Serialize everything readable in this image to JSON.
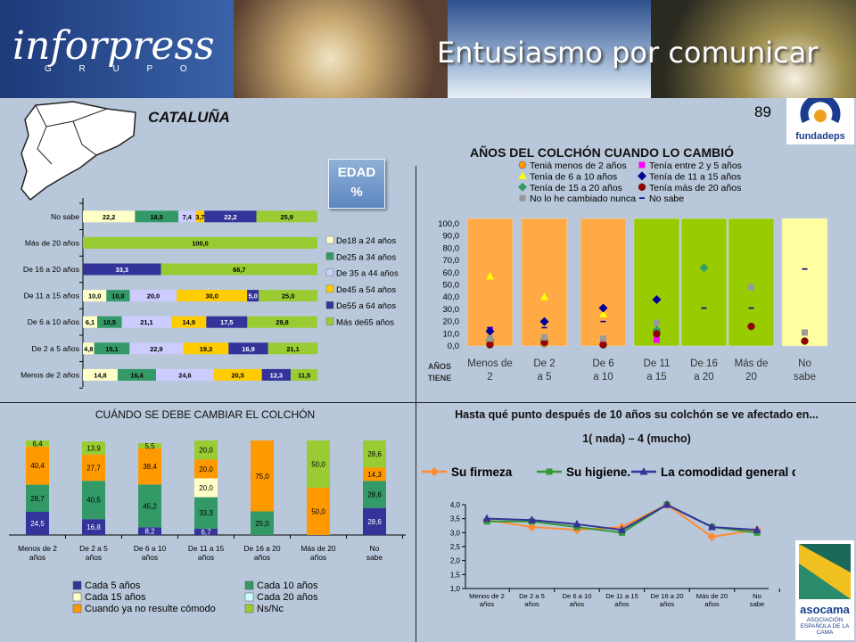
{
  "header": {
    "brand": "inforpress",
    "brand_sub": "G R U P O",
    "tagline": "Entusiasmo por comunicar",
    "page_number": "89",
    "region": "CATALUÑA",
    "logo_fundadeps": "fundadeps",
    "logo_asocama": "asocama",
    "logo_asocama_sub": "ASOCIACIÓN ESPAÑOLA DE LA CAMA"
  },
  "edad_box": {
    "line1": "EDAD",
    "line2": "%"
  },
  "titles": {
    "change_years": "AÑOS DEL COLCHÓN CUANDO LO CAMBIÓ",
    "when_change": "CUÁNDO  SE DEBE CAMBIAR  EL COLCHÓN",
    "affected_line1": "Hasta qué punto después de 10 años su colchón se ve afectado en...",
    "affected_line2": "1( nada) – 4 (mucho)"
  },
  "chart_data": [
    {
      "id": "edad",
      "type": "bar",
      "orientation": "horizontal",
      "stacked": true,
      "categories": [
        "No sabe",
        "Más de 20 años",
        "De 16 a 20 años",
        "De 11 a 15 años",
        "De 6 a 10 años",
        "De 2 a 5 años",
        "Menos de 2 años"
      ],
      "series": [
        {
          "name": "De18 a 24 años",
          "color": "#ffffc8",
          "values": [
            22.2,
            0,
            0,
            10.0,
            6.1,
            4.8,
            14.8
          ]
        },
        {
          "name": "De25 a 34 años",
          "color": "#339966",
          "values": [
            18.5,
            0,
            0,
            10.0,
            10.5,
            15.1,
            16.4
          ]
        },
        {
          "name": "De 35 a 44 años",
          "color": "#ccccff",
          "values": [
            7.4,
            0,
            0,
            20.0,
            21.1,
            22.9,
            24.6
          ]
        },
        {
          "name": "De45 a 54 años",
          "color": "#ffcc00",
          "values": [
            3.7,
            0,
            0,
            30.0,
            14.9,
            19.3,
            20.5
          ]
        },
        {
          "name": "De55 a 64 años",
          "color": "#333399",
          "values": [
            22.2,
            0,
            33.3,
            5.0,
            17.5,
            16.9,
            12.3
          ]
        },
        {
          "name": "Más de65 años",
          "color": "#99cc33",
          "values": [
            25.9,
            100.0,
            66.7,
            25.0,
            29.8,
            21.1,
            11.5
          ]
        }
      ],
      "labels": [
        [
          "22,2",
          "18,5",
          "7,4",
          "3,7",
          "22,2",
          "25,9"
        ],
        [
          "",
          "",
          "",
          "",
          "",
          "100,0"
        ],
        [
          "",
          "",
          "",
          "",
          "33,3",
          "66,7"
        ],
        [
          "10,0",
          "10,0",
          "20,0",
          "30,0",
          "5,0",
          "25,0"
        ],
        [
          "6,1",
          "10,5",
          "21,1",
          "14,9",
          "17,5",
          "29,8"
        ],
        [
          "4,8",
          "15,1",
          "22,9",
          "19,3",
          "16,9",
          "21,1"
        ],
        [
          "14,8",
          "16,4",
          "24,6",
          "20,5",
          "12,3",
          "11,5"
        ]
      ],
      "xlim": [
        0,
        100
      ]
    },
    {
      "id": "anios_colchon",
      "type": "scatter",
      "categories": [
        "Menos de 2",
        "De 2 a 5",
        "De 6 a 10",
        "De 11 a 15",
        "De 16 a 20",
        "Más de 20",
        "No sabe"
      ],
      "column_colors": [
        "#ffaa44",
        "#ffaa44",
        "#ffaa44",
        "#99cc00",
        "#99cc00",
        "#99cc00",
        "#ffffa0"
      ],
      "axis_title": "AÑOS TIENE",
      "ylim": [
        0,
        100
      ],
      "yticks": [
        "0,0",
        "10,0",
        "20,0",
        "30,0",
        "40,0",
        "50,0",
        "60,0",
        "70,0",
        "80,0",
        "90,0",
        "100,0"
      ],
      "series": [
        {
          "name": "Teniá menos de 2 años",
          "color": "#ff9900",
          "marker": "circle",
          "values": [
            3,
            2,
            1,
            10,
            null,
            null,
            null
          ]
        },
        {
          "name": "Tenía entre 2 y 5 años",
          "color": "#ff00ff",
          "marker": "square",
          "values": [
            13,
            6,
            2,
            5,
            null,
            null,
            null
          ]
        },
        {
          "name": "Tenía de 6 a 10 años",
          "color": "#ffff00",
          "marker": "triangle",
          "values": [
            57,
            40,
            26,
            12,
            null,
            null,
            null
          ]
        },
        {
          "name": "Tenía de 11 a 15 años",
          "color": "#000099",
          "marker": "diamond",
          "values": [
            12,
            20,
            31,
            38,
            null,
            null,
            null
          ]
        },
        {
          "name": "Tenía de 15 a 20 años",
          "color": "#339966",
          "marker": "diamond",
          "values": [
            5,
            5,
            null,
            13,
            64,
            null,
            null
          ]
        },
        {
          "name": "Tenía más de 20 años",
          "color": "#990000",
          "marker": "circle",
          "values": [
            1,
            3,
            1,
            10,
            null,
            16,
            4
          ]
        },
        {
          "name": "No lo he cambiado nunca",
          "color": "#999999",
          "marker": "square",
          "values": [
            6,
            7,
            6,
            19,
            null,
            48,
            11
          ]
        },
        {
          "name": "No sabe",
          "color": "#000099",
          "marker": "dash",
          "values": [
            15,
            15,
            20,
            null,
            31,
            31,
            63
          ]
        }
      ]
    },
    {
      "id": "cuando_cambiar",
      "type": "bar",
      "stacked": true,
      "categories": [
        "Menos de 2 años",
        "De 2 a 5 años",
        "De 6 a 10 años",
        "De 11 a 15 años",
        "De 16 a 20 años",
        "Más de 20 años",
        "No sabe"
      ],
      "series": [
        {
          "name": "Cada 5 años",
          "color": "#333399",
          "values": [
            24.5,
            16.8,
            8.2,
            6.7,
            0,
            0,
            28.6
          ]
        },
        {
          "name": "Cada 10 años",
          "color": "#339966",
          "values": [
            28.7,
            40.5,
            45.2,
            33.3,
            25.0,
            0,
            28.6
          ]
        },
        {
          "name": "Cada 15 años",
          "color": "#ffffc8",
          "values": [
            0,
            0,
            0,
            20.0,
            0,
            0,
            0
          ]
        },
        {
          "name": "Cada 20 años",
          "color": "#ccffff",
          "values": [
            0,
            0,
            0,
            0,
            0,
            0,
            0
          ]
        },
        {
          "name": "Cuando ya no resulte cómodo",
          "color": "#ff9900",
          "values": [
            40.4,
            27.7,
            38.4,
            20.0,
            75.0,
            50.0,
            14.3
          ]
        },
        {
          "name": "Ns/Nc",
          "color": "#99cc33",
          "values": [
            6.4,
            13.9,
            5.5,
            20.0,
            0,
            50.0,
            28.6
          ]
        }
      ],
      "labels": [
        [
          "24,5",
          "28,7",
          "",
          "",
          "40,4",
          "6,4"
        ],
        [
          "16,8",
          "40,5",
          "",
          "",
          "27,7",
          "13,9"
        ],
        [
          "8,2",
          "45,2",
          "",
          "",
          "38,4",
          "5,5"
        ],
        [
          "6,7",
          "33,3",
          "20,0",
          "",
          "20,0",
          "20,0"
        ],
        [
          "",
          "25,0",
          "",
          "",
          "75,0",
          ""
        ],
        [
          "",
          "",
          "",
          "",
          "50,0",
          "50,0"
        ],
        [
          "28,6",
          "28,6",
          "",
          "",
          "14,3",
          "28,6"
        ]
      ],
      "ylim": [
        0,
        100
      ]
    },
    {
      "id": "afectado",
      "type": "line",
      "categories": [
        "Menos de 2 años",
        "De 2 a 5 años",
        "De 6 a 10 años",
        "De 11 a 15 años",
        "De 16 a 20 años",
        "Más de 20 años",
        "No sabe"
      ],
      "series": [
        {
          "name": "Su firmeza",
          "color": "#ff8c33",
          "marker": "diamond",
          "values": [
            3.45,
            3.2,
            3.1,
            3.2,
            4.0,
            2.85,
            3.1
          ]
        },
        {
          "name": "Su higiene.",
          "color": "#339933",
          "marker": "square",
          "values": [
            3.4,
            3.4,
            3.2,
            3.0,
            4.0,
            3.2,
            3.0
          ]
        },
        {
          "name": "La comodidad general del colchón.",
          "color": "#333399",
          "marker": "triangle",
          "values": [
            3.5,
            3.45,
            3.3,
            3.1,
            4.0,
            3.2,
            3.1
          ]
        }
      ],
      "ylim": [
        1.0,
        4.0
      ],
      "yticks": [
        "1,0",
        "1,5",
        "2,0",
        "2,5",
        "3,0",
        "3,5",
        "4,0"
      ]
    }
  ]
}
